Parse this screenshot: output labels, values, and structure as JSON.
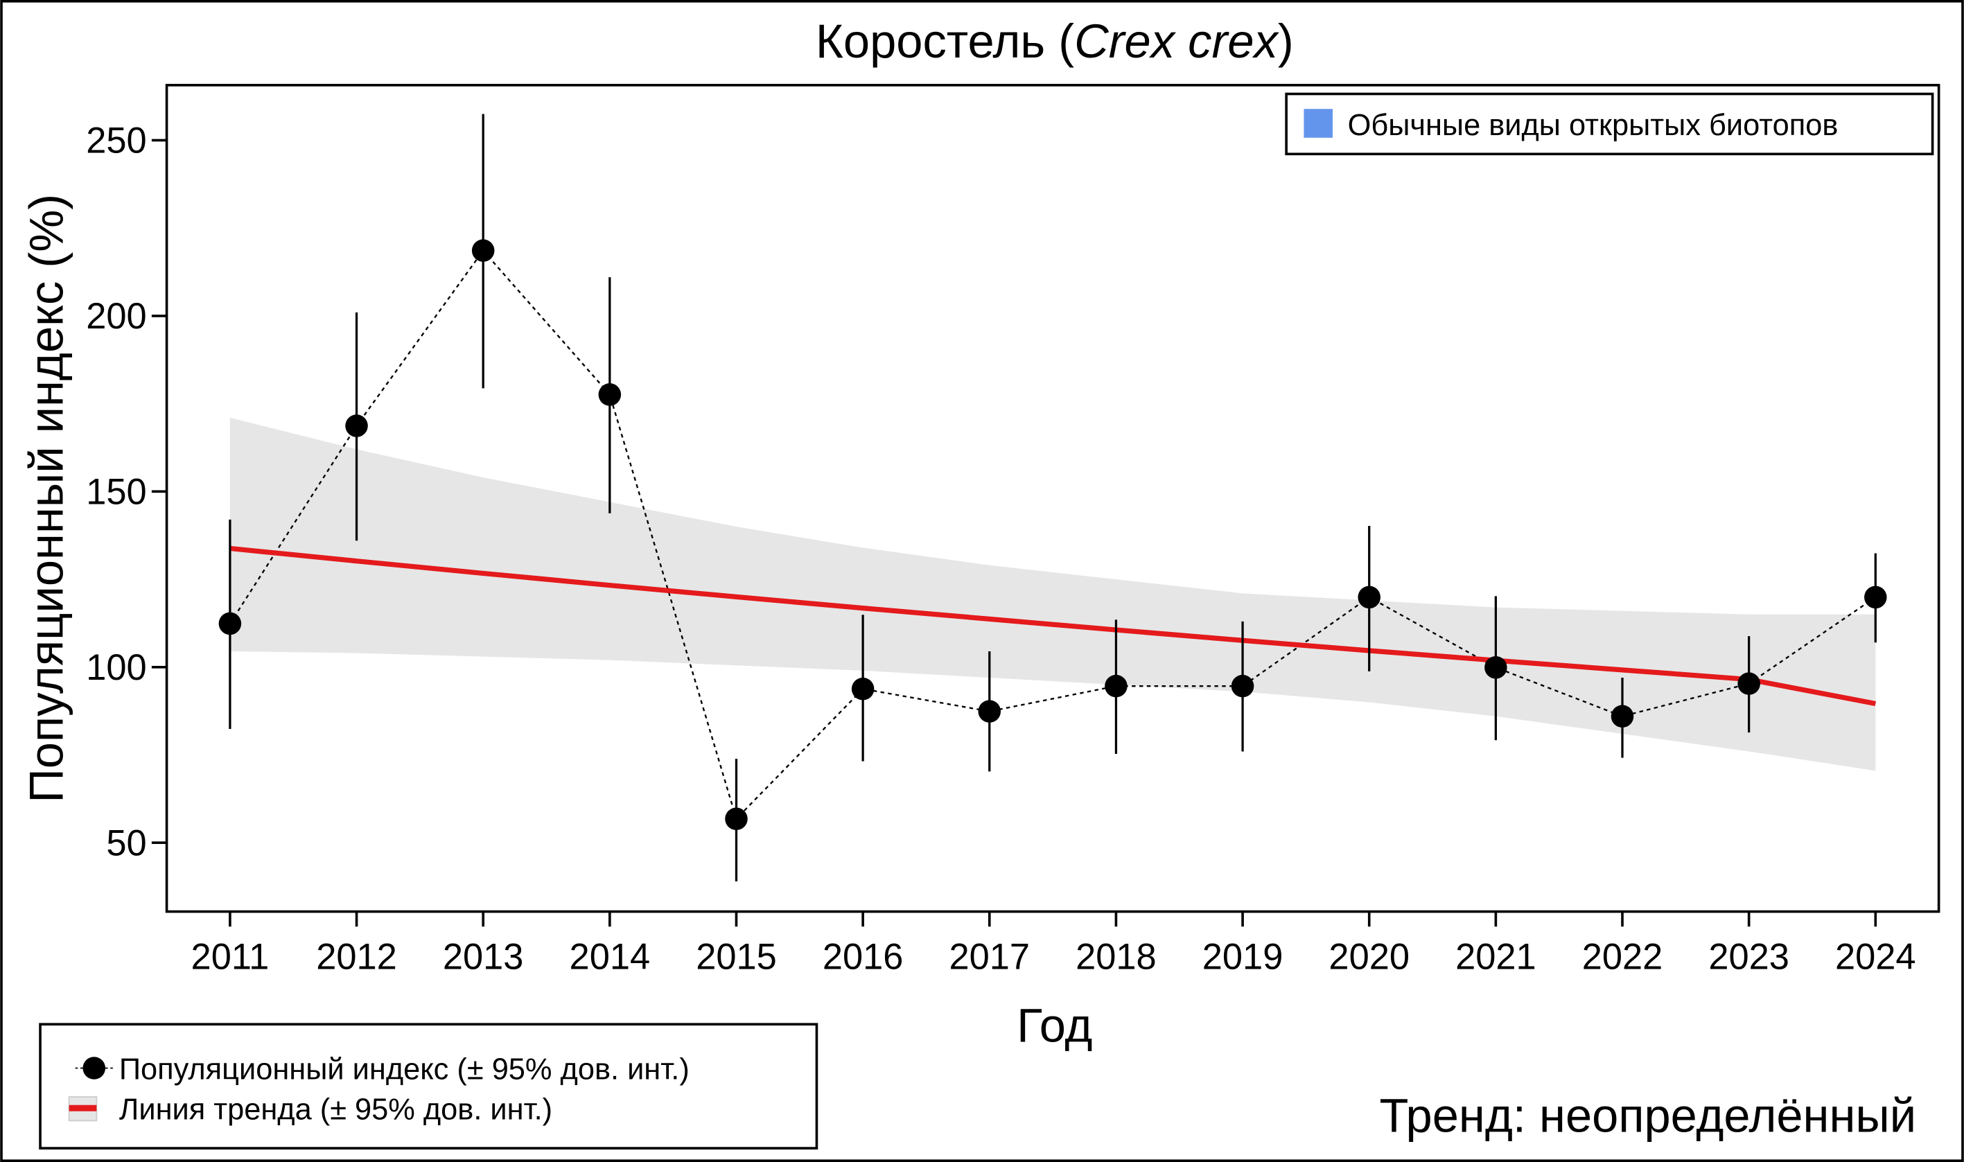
{
  "chart_data": {
    "type": "line",
    "title": {
      "prefix": "Коростель (",
      "species": "Crex crex",
      "suffix": ")"
    },
    "xlabel": "Год",
    "ylabel": "Популяционный индекс (%)",
    "x": [
      2011,
      2012,
      2013,
      2014,
      2015,
      2016,
      2017,
      2018,
      2019,
      2020,
      2021,
      2022,
      2023,
      2024
    ],
    "xlim": [
      2010.5,
      2024.5
    ],
    "ylim": [
      30.4,
      265.7
    ],
    "yticks": [
      50,
      100,
      150,
      200,
      250
    ],
    "series": [
      {
        "name": "Популяционный индекс (± 95% дов. инт.)",
        "values": [
          112.4,
          168.7,
          218.6,
          177.6,
          56.8,
          93.8,
          87.4,
          94.6,
          94.6,
          119.9,
          99.9,
          86.0,
          95.3,
          119.9
        ],
        "ci_upper": [
          142,
          201,
          257.5,
          211,
          73.9,
          114.9,
          104.5,
          113.5,
          113,
          140.2,
          120.2,
          97,
          108.8,
          132.4
        ],
        "ci_lower": [
          82.4,
          136,
          179.4,
          143.8,
          39,
          73.2,
          70.3,
          75.3,
          76,
          98.8,
          79.2,
          74.2,
          81.4,
          107
        ]
      },
      {
        "name": "Линия тренда (± 95% дов. инт.)",
        "values": [
          133.8,
          130.2,
          126.7,
          123.3,
          120.0,
          116.8,
          113.7,
          110.6,
          107.6,
          104.7,
          101.9,
          99.2,
          96.5,
          89.6
        ],
        "band_upper": [
          171,
          162,
          154,
          147,
          140,
          134,
          129,
          125,
          121,
          119,
          117,
          116,
          115,
          115
        ],
        "band_lower": [
          104.5,
          104,
          103,
          102,
          100.5,
          99,
          97,
          95,
          93,
          90,
          86,
          81,
          76,
          70.5
        ]
      }
    ],
    "legend_group": {
      "label": "Обычные виды открытых биотопов",
      "color": "#6495ed",
      "placement": "top-right"
    },
    "legend_placement": "bottom-left",
    "trend_text": "Тренд: неопределённый",
    "colors": {
      "trend": "#e41a1c",
      "band": "#e6e6e6",
      "points": "#000000"
    }
  }
}
